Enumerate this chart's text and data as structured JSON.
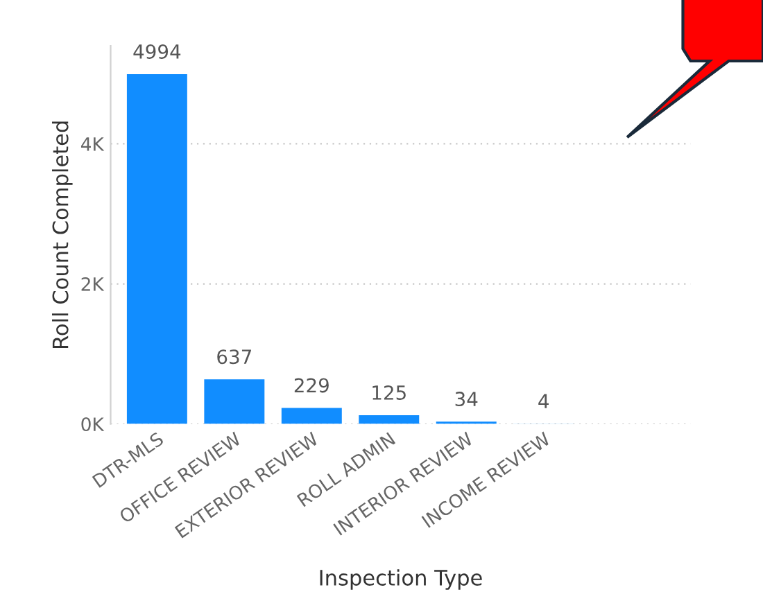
{
  "chart_data": {
    "type": "bar",
    "xlabel": "Inspection Type",
    "ylabel": "Roll Count Completed",
    "categories": [
      "DTR-MLS",
      "OFFICE REVIEW",
      "EXTERIOR REVIEW",
      "ROLL ADMIN",
      "INTERIOR REVIEW",
      "INCOME REVIEW"
    ],
    "values": [
      4994,
      637,
      229,
      125,
      34,
      4
    ],
    "color": "#118dff",
    "ylim": [
      0,
      5400
    ],
    "yticks": [
      {
        "value": 0,
        "label": "0K"
      },
      {
        "value": 2000,
        "label": "2K"
      },
      {
        "value": 4000,
        "label": "4K"
      }
    ],
    "grid": "y",
    "data_labels": true
  }
}
